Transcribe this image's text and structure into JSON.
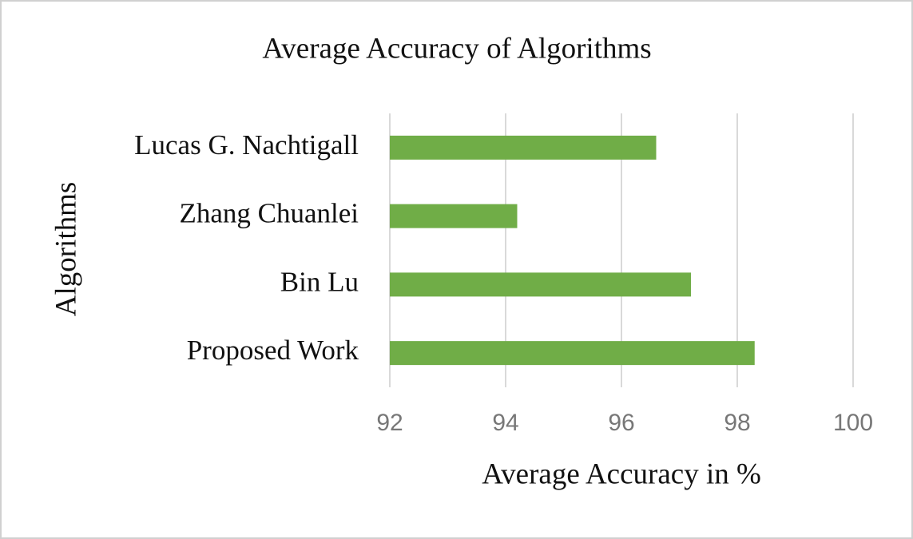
{
  "chart_data": {
    "type": "bar",
    "orientation": "horizontal",
    "title": "Average Accuracy of Algorithms",
    "x_label": "Average Accuracy in %",
    "y_label": "Algorithms",
    "categories": [
      "Lucas G. Nachtigall",
      "Zhang Chuanlei",
      "Bin Lu",
      "Proposed Work"
    ],
    "values": [
      96.6,
      94.2,
      97.2,
      98.3
    ],
    "color": "#70ad47",
    "xlim": [
      92,
      100
    ],
    "xticks": [
      92,
      94,
      96,
      98,
      100
    ],
    "grid": true
  }
}
